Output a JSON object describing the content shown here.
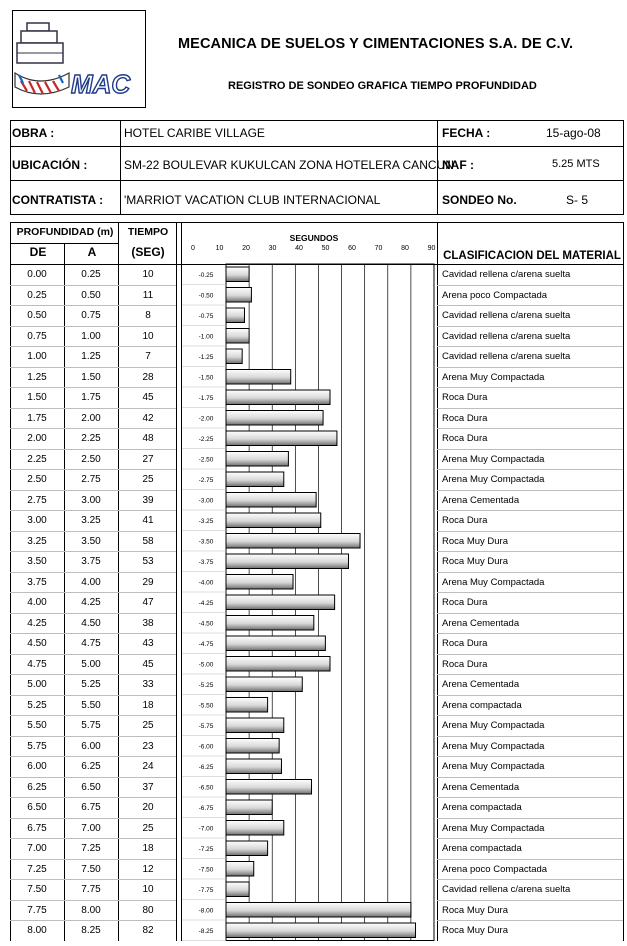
{
  "header": {
    "company": "MECANICA DE SUELOS Y CIMENTACIONES S.A. DE C.V.",
    "title": "REGISTRO DE SONDEO GRAFICA TIEMPO PROFUNDIDAD",
    "logo_letters": "MAC"
  },
  "info": {
    "obra_label": "OBRA :",
    "obra_value": "HOTEL CARIBE VILLAGE",
    "fecha_label": "FECHA :",
    "fecha_value": "15-ago-08",
    "ubicacion_label": "UBICACIÓN :",
    "ubicacion_value": "SM-22 BOULEVAR KUKULCAN ZONA HOTELERA CANCUN",
    "naf_label": "NAF :",
    "naf_value": "5.25 MTS",
    "contratista_label": "CONTRATISTA :",
    "contratista_value": "'MARRIOT VACATION CLUB INTERNACIONAL",
    "sondeo_label": "SONDEO No.",
    "sondeo_value": "S- 5"
  },
  "table": {
    "profundidad_header": "PROFUNDIDAD (m)",
    "de_header": "DE",
    "a_header": "A",
    "tiempo_header": "TIEMPO",
    "seg_header": "(SEG)",
    "clasificacion_header": "CLASIFICACION DEL MATERIAL",
    "rows": [
      {
        "de": "0.00",
        "a": "0.25",
        "tiempo": "10",
        "material": "Cavidad rellena c/arena suelta"
      },
      {
        "de": "0.25",
        "a": "0.50",
        "tiempo": "11",
        "material": "Arena poco Compactada"
      },
      {
        "de": "0.50",
        "a": "0.75",
        "tiempo": "8",
        "material": "Cavidad rellena c/arena suelta"
      },
      {
        "de": "0.75",
        "a": "1.00",
        "tiempo": "10",
        "material": "Cavidad rellena c/arena suelta"
      },
      {
        "de": "1.00",
        "a": "1.25",
        "tiempo": "7",
        "material": "Cavidad rellena c/arena suelta"
      },
      {
        "de": "1.25",
        "a": "1.50",
        "tiempo": "28",
        "material": "Arena Muy Compactada"
      },
      {
        "de": "1.50",
        "a": "1.75",
        "tiempo": "45",
        "material": "Roca Dura"
      },
      {
        "de": "1.75",
        "a": "2.00",
        "tiempo": "42",
        "material": "Roca Dura"
      },
      {
        "de": "2.00",
        "a": "2.25",
        "tiempo": "48",
        "material": "Roca Dura"
      },
      {
        "de": "2.25",
        "a": "2.50",
        "tiempo": "27",
        "material": "Arena Muy Compactada"
      },
      {
        "de": "2.50",
        "a": "2.75",
        "tiempo": "25",
        "material": "Arena Muy Compactada"
      },
      {
        "de": "2.75",
        "a": "3.00",
        "tiempo": "39",
        "material": "Arena Cementada"
      },
      {
        "de": "3.00",
        "a": "3.25",
        "tiempo": "41",
        "material": "Roca Dura"
      },
      {
        "de": "3.25",
        "a": "3.50",
        "tiempo": "58",
        "material": "Roca Muy Dura"
      },
      {
        "de": "3.50",
        "a": "3.75",
        "tiempo": "53",
        "material": "Roca Muy Dura"
      },
      {
        "de": "3.75",
        "a": "4.00",
        "tiempo": "29",
        "material": "Arena Muy Compactada"
      },
      {
        "de": "4.00",
        "a": "4.25",
        "tiempo": "47",
        "material": "Roca Dura"
      },
      {
        "de": "4.25",
        "a": "4.50",
        "tiempo": "38",
        "material": "Arena Cementada"
      },
      {
        "de": "4.50",
        "a": "4.75",
        "tiempo": "43",
        "material": "Roca Dura"
      },
      {
        "de": "4.75",
        "a": "5.00",
        "tiempo": "45",
        "material": "Roca Dura"
      },
      {
        "de": "5.00",
        "a": "5.25",
        "tiempo": "33",
        "material": "Arena Cementada"
      },
      {
        "de": "5.25",
        "a": "5.50",
        "tiempo": "18",
        "material": "Arena compactada"
      },
      {
        "de": "5.50",
        "a": "5.75",
        "tiempo": "25",
        "material": "Arena Muy Compactada"
      },
      {
        "de": "5.75",
        "a": "6.00",
        "tiempo": "23",
        "material": "Arena Muy Compactada"
      },
      {
        "de": "6.00",
        "a": "6.25",
        "tiempo": "24",
        "material": "Arena Muy Compactada"
      },
      {
        "de": "6.25",
        "a": "6.50",
        "tiempo": "37",
        "material": "Arena Cementada"
      },
      {
        "de": "6.50",
        "a": "6.75",
        "tiempo": "20",
        "material": "Arena compactada"
      },
      {
        "de": "6.75",
        "a": "7.00",
        "tiempo": "25",
        "material": "Arena Muy Compactada"
      },
      {
        "de": "7.00",
        "a": "7.25",
        "tiempo": "18",
        "material": "Arena compactada"
      },
      {
        "de": "7.25",
        "a": "7.50",
        "tiempo": "12",
        "material": "Arena poco Compactada"
      },
      {
        "de": "7.50",
        "a": "7.75",
        "tiempo": "10",
        "material": "Cavidad rellena c/arena suelta"
      },
      {
        "de": "7.75",
        "a": "8.00",
        "tiempo": "80",
        "material": "Roca Muy Dura"
      },
      {
        "de": "8.00",
        "a": "8.25",
        "tiempo": "82",
        "material": "Roca Muy Dura"
      }
    ]
  },
  "chart_data": {
    "type": "bar",
    "orientation": "horizontal",
    "title": "SEGUNDOS",
    "x_ticks": [
      "0",
      "10",
      "20",
      "30",
      "40",
      "50",
      "60",
      "70",
      "80",
      "90"
    ],
    "xlim": [
      0,
      90
    ],
    "y_labels": [
      "-0.25",
      "-0.50",
      "-0.75",
      "-1.00",
      "-1.25",
      "-1.50",
      "-1.75",
      "-2.00",
      "-2.25",
      "-2.50",
      "-2.75",
      "-3.00",
      "-3.25",
      "-3.50",
      "-3.75",
      "-4.00",
      "-4.25",
      "-4.50",
      "-4.75",
      "-5.00",
      "-5.25",
      "-5.50",
      "-5.75",
      "-6.00",
      "-6.25",
      "-6.50",
      "-6.75",
      "-7.00",
      "-7.25",
      "-7.50",
      "-7.75",
      "-8.00",
      "-8.25"
    ],
    "values": [
      10,
      11,
      8,
      10,
      7,
      28,
      45,
      42,
      48,
      27,
      25,
      39,
      41,
      58,
      53,
      29,
      47,
      38,
      43,
      45,
      33,
      18,
      25,
      23,
      24,
      37,
      20,
      25,
      18,
      12,
      10,
      80,
      82
    ],
    "grid": true
  }
}
